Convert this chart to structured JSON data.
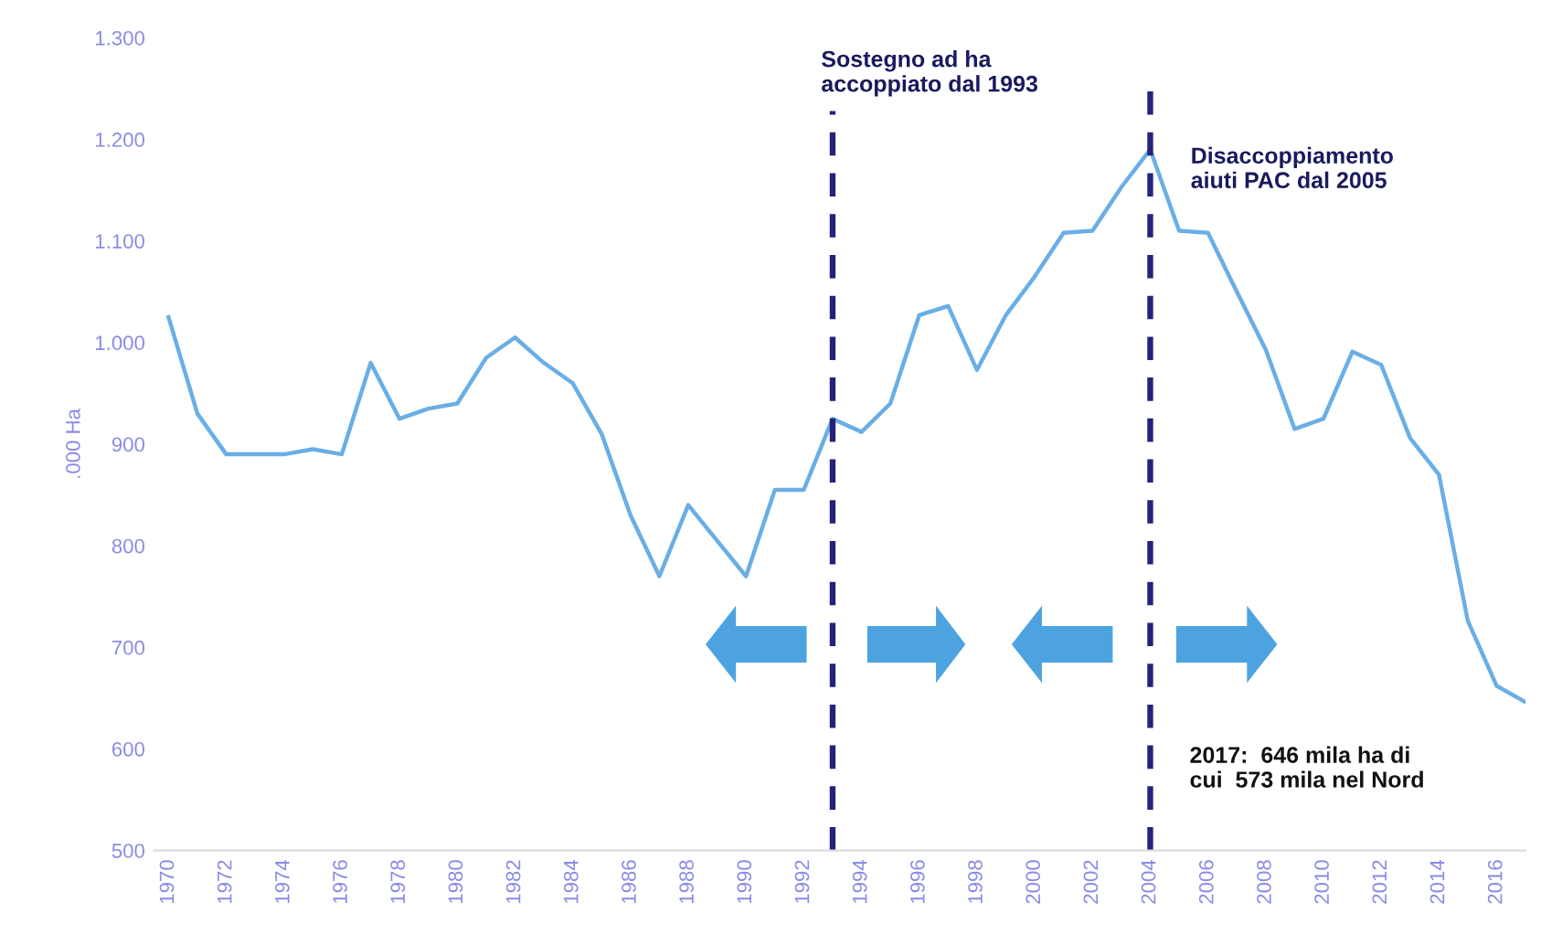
{
  "chart_data": {
    "type": "line",
    "ylabel": ".000 Ha",
    "x": [
      1970,
      1971,
      1972,
      1973,
      1974,
      1975,
      1976,
      1977,
      1978,
      1979,
      1980,
      1981,
      1982,
      1983,
      1984,
      1985,
      1986,
      1987,
      1988,
      1989,
      1990,
      1991,
      1992,
      1993,
      1994,
      1995,
      1996,
      1997,
      1998,
      1999,
      2000,
      2001,
      2002,
      2003,
      2004,
      2005,
      2006,
      2007,
      2008,
      2009,
      2010,
      2011,
      2012,
      2013,
      2014,
      2015,
      2016,
      2017
    ],
    "series": [
      {
        "color": "#6aaee6",
        "values": [
          1025,
          930,
          890,
          890,
          890,
          895,
          890,
          980,
          925,
          935,
          940,
          985,
          1005,
          980,
          960,
          910,
          830,
          770,
          840,
          805,
          770,
          855,
          855,
          925,
          912,
          940,
          1027,
          1036,
          973,
          1027,
          1065,
          1108,
          1110,
          1153,
          1190,
          1110,
          1108,
          1050,
          993,
          915,
          925,
          991,
          978,
          906,
          870,
          726,
          662,
          646
        ]
      }
    ],
    "xticks": [
      1970,
      1972,
      1974,
      1976,
      1978,
      1980,
      1982,
      1984,
      1986,
      1988,
      1990,
      1992,
      1994,
      1996,
      1998,
      2000,
      2002,
      2004,
      2006,
      2008,
      2010,
      2012,
      2014,
      2016
    ],
    "xlim": [
      1969.5,
      2017
    ],
    "ylim": [
      500,
      1300
    ],
    "yticks": [
      500,
      600,
      700,
      800,
      900,
      {
        "value": 1000,
        "label": "1.000"
      },
      {
        "value": 1100,
        "label": "1.100"
      },
      {
        "value": 1200,
        "label": "1.200"
      },
      {
        "value": 1300,
        "label": "1.300"
      }
    ],
    "ref_lines": [
      {
        "axis": "x",
        "value": 1993,
        "label": "Sostegno ad ha\naccoppiato dal 1993",
        "color": "#23237a",
        "line_style": "dashed"
      },
      {
        "axis": "x",
        "value": 2004,
        "label": "Disaccoppiamento\naiuti PAC dal 2005",
        "color": "#23237a",
        "line_style": "dashed"
      }
    ],
    "annotations": [
      "2017:  646 mila ha di\ncui  573 mila nel Nord"
    ],
    "marker": "none",
    "line_style": "solid",
    "grid": false,
    "legend": false
  }
}
